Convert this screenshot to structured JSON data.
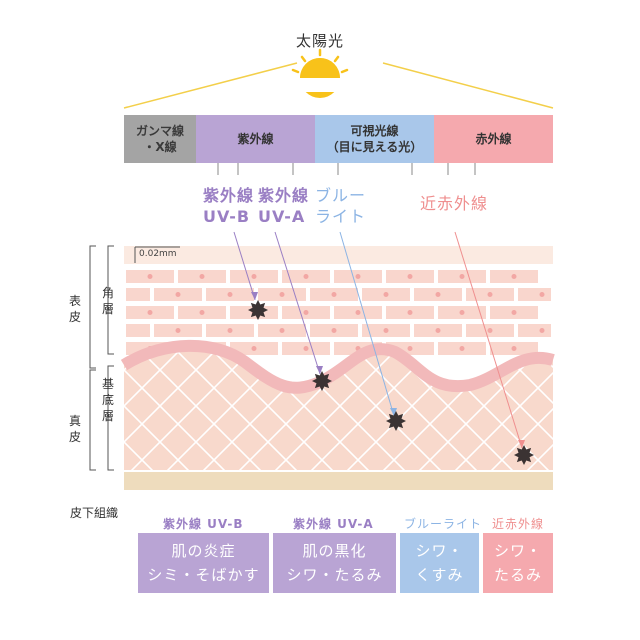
{
  "sunlight": {
    "title": "太陽光"
  },
  "bands": [
    {
      "line1": "ガンマ線",
      "line2": "・X線"
    },
    {
      "line1": "紫外線",
      "line2": ""
    },
    {
      "line1": "可視光線",
      "line2": "（目に見える光）"
    },
    {
      "line1": "赤外線",
      "line2": ""
    }
  ],
  "rays": {
    "uvb": {
      "line1": "紫外線",
      "line2": "UV-B"
    },
    "uva": {
      "line1": "紫外線",
      "line2": "UV-A"
    },
    "blue": {
      "line1": "ブルー",
      "line2": "ライト"
    },
    "nir": {
      "line1": "近赤外線"
    }
  },
  "scale": "0.02mm",
  "layers": {
    "epidermis": "表皮",
    "stratum_corneum": "角層",
    "basal": "基底層",
    "dermis": "真皮",
    "subcutaneous": "皮下組織"
  },
  "effects": [
    {
      "category": "紫外線 UV-B",
      "line1": "肌の炎症",
      "line2": "シミ・そばかす"
    },
    {
      "category": "紫外線 UV-A",
      "line1": "肌の黒化",
      "line2": "シワ・たるみ"
    },
    {
      "category": "ブルーライト",
      "line1": "シワ・",
      "line2": "くすみ"
    },
    {
      "category": "近赤外線",
      "line1": "シワ・",
      "line2": "たるみ"
    }
  ],
  "colors": {
    "uv": "#b9a4d4",
    "uv_text": "#9a7fc4",
    "visible": "#a9c7ea",
    "blue_text": "#8cb4e4",
    "infrared": "#f5a9ae",
    "ir_text": "#ef8f8f",
    "gamma": "#a4a4a4",
    "sun": "#f8c21a",
    "skin": "#f8d9cc",
    "subcutaneous": "#eedcbd"
  },
  "icons": [
    "sun-icon",
    "damage-spot-icon"
  ]
}
